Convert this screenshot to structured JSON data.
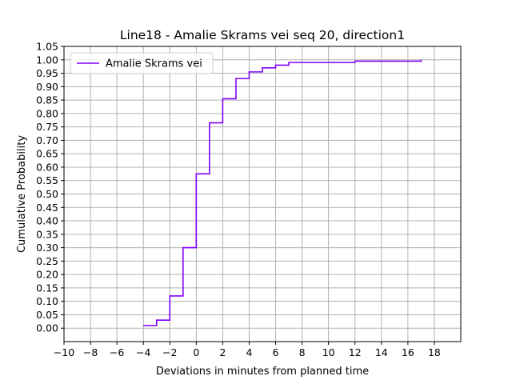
{
  "chart_data": {
    "type": "line",
    "step": "post",
    "title": "Line18 - Amalie Skrams vei seq 20, direction1",
    "xlabel": "Deviations in minutes from planned time",
    "ylabel": "Cumulative Probability",
    "xlim": [
      -10,
      20
    ],
    "ylim": [
      -0.05,
      1.05
    ],
    "xticks": [
      -10,
      -8,
      -6,
      -4,
      -2,
      0,
      2,
      4,
      6,
      8,
      10,
      12,
      14,
      16,
      18
    ],
    "yticks": [
      0.0,
      0.05,
      0.1,
      0.15,
      0.2,
      0.25,
      0.3,
      0.35,
      0.4,
      0.45,
      0.5,
      0.55,
      0.6,
      0.65,
      0.7,
      0.75,
      0.8,
      0.85,
      0.9,
      0.95,
      1.0,
      1.05
    ],
    "grid": true,
    "legend": "top-left",
    "series": [
      {
        "name": "Amalie Skrams vei",
        "color": "#7f00ff",
        "x": [
          -4,
          -3,
          -2,
          -1,
          0,
          1,
          2,
          3,
          4,
          5,
          6,
          7,
          12,
          17
        ],
        "y": [
          0.01,
          0.03,
          0.12,
          0.3,
          0.575,
          0.765,
          0.855,
          0.93,
          0.955,
          0.97,
          0.98,
          0.99,
          0.995,
          1.0
        ]
      }
    ]
  }
}
